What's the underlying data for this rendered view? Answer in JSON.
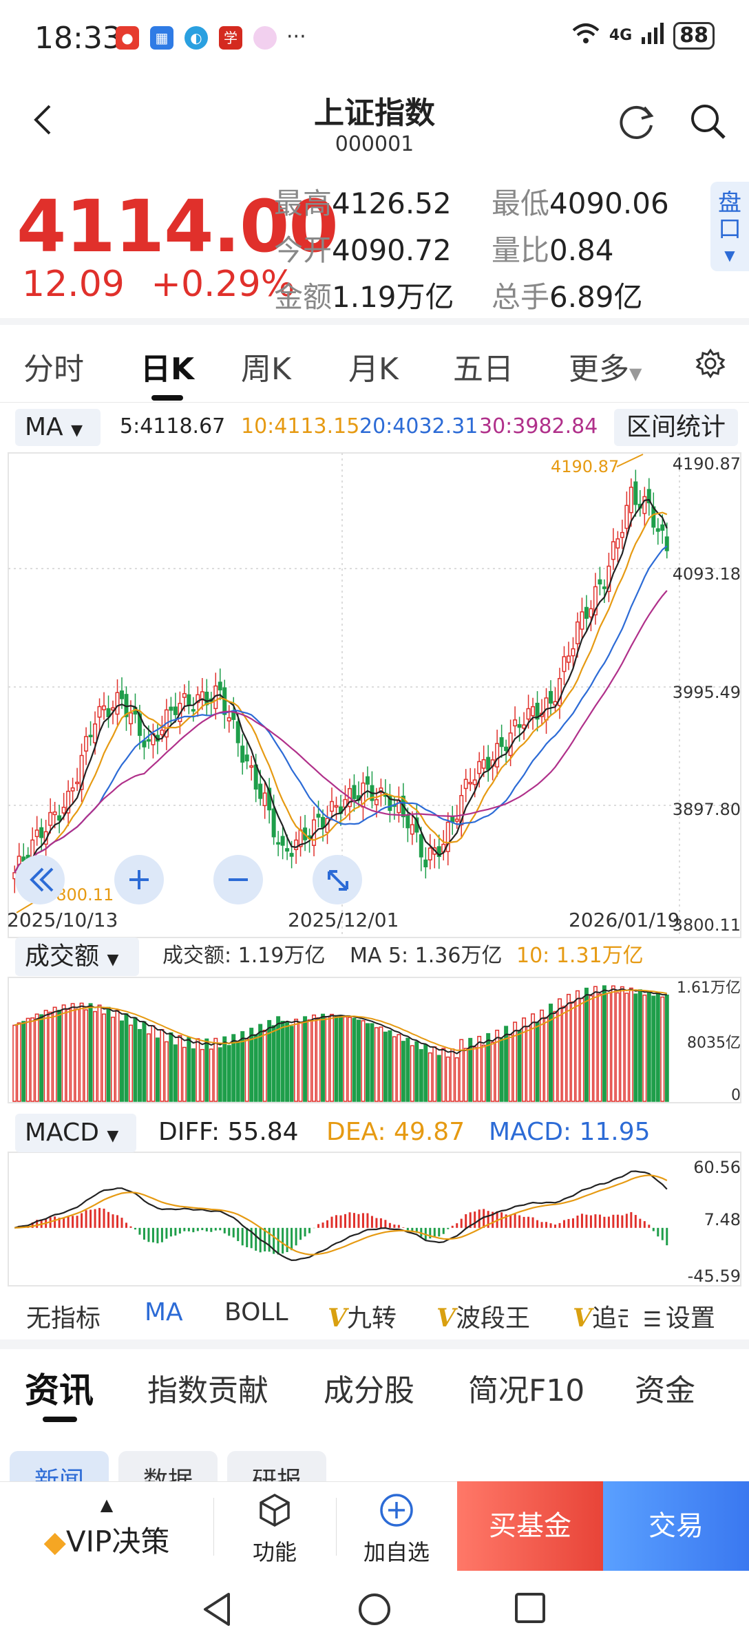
{
  "status": {
    "time": "18:33",
    "network": "4G",
    "battery": "88"
  },
  "header": {
    "title": "上证指数",
    "code": "000001"
  },
  "quote": {
    "price": "4114.00",
    "change": "12.09",
    "change_pct": "+0.29%",
    "high_label": "最高",
    "high": "4126.52",
    "low_label": "最低",
    "low": "4090.06",
    "open_label": "今开",
    "open": "4090.72",
    "ratio_label": "量比",
    "ratio": "0.84",
    "amount_label": "金额",
    "amount": "1.19万亿",
    "hands_label": "总手",
    "hands": "6.89亿",
    "pankou": "盘口"
  },
  "ktabs": [
    "分时",
    "日K",
    "周K",
    "月K",
    "五日",
    "更多"
  ],
  "ma": {
    "select": "MA",
    "ma5": "5:4118.67",
    "ma10": "10:4113.15",
    "ma20": "20:4032.31",
    "ma30": "30:3982.84",
    "range_button": "区间统计"
  },
  "kline": {
    "yticks": [
      "4190.87",
      "4093.18",
      "3995.49",
      "3897.80",
      "3800.11"
    ],
    "max_label": "4190.87",
    "min_label": "3800.11",
    "dates": [
      "2025/10/13",
      "2025/12/01",
      "2026/01/19"
    ]
  },
  "volume": {
    "select": "成交额",
    "amount": "成交额: 1.19万亿",
    "ma5": "MA 5: 1.36万亿",
    "ma10": "10: 1.31万亿",
    "yticks": [
      "1.61万亿",
      "8035亿",
      "0"
    ]
  },
  "macd": {
    "select": "MACD",
    "diff": "DIFF: 55.84",
    "dea": "DEA: 49.87",
    "macd": "MACD: 11.95",
    "yticks": [
      "60.56",
      "7.48",
      "-45.59"
    ]
  },
  "indicators": [
    "无指标",
    "MA",
    "BOLL",
    "九转",
    "波段王",
    "追击",
    "设置"
  ],
  "news_tabs": [
    "资讯",
    "指数贡献",
    "成分股",
    "简况F10",
    "资金"
  ],
  "sub_tabs": [
    "新闻",
    "数据",
    "研报"
  ],
  "bottom": {
    "vip": "VIP决策",
    "func": "功能",
    "add": "加自选",
    "buy": "买基金",
    "trade": "交易"
  },
  "colors": {
    "up": "#e0302b",
    "down": "#1e9e4a",
    "ma5": "#222222",
    "ma10": "#e69a12",
    "ma20": "#2c6bd6",
    "ma30": "#b0308a",
    "accent": "#2c6bd6"
  }
}
